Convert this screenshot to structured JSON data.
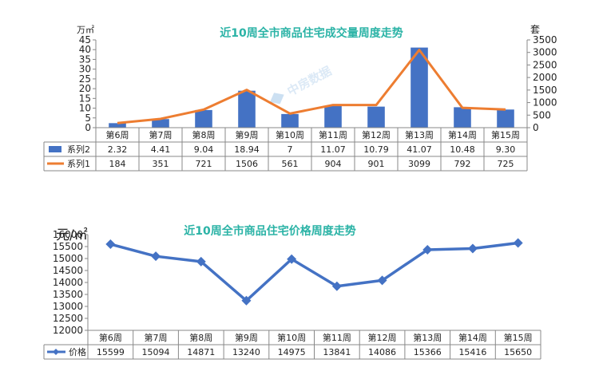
{
  "chart_data": [
    {
      "type": "bar+line",
      "title": "近10周全市商品住宅成交量周度走势",
      "left_unit": "万㎡",
      "right_unit": "套",
      "watermark": "中房数据",
      "categories": [
        "第6周",
        "第7周",
        "第8周",
        "第9周",
        "第10周",
        "第11周",
        "第12周",
        "第13周",
        "第14周",
        "第15周"
      ],
      "y_left": {
        "min": 0,
        "max": 45,
        "step": 5
      },
      "y_right": {
        "min": 0,
        "max": 3500,
        "step": 500
      },
      "series": [
        {
          "name": "系列2",
          "type": "bar",
          "axis": "left",
          "color": "#4472C4",
          "values": [
            2.32,
            4.41,
            9.04,
            18.94,
            7,
            11.07,
            10.79,
            41.07,
            10.48,
            9.3
          ],
          "labels": [
            "2.32",
            "4.41",
            "9.04",
            "18.94",
            "7",
            "11.07",
            "10.79",
            "41.07",
            "10.48",
            "9.30"
          ]
        },
        {
          "name": "系列1",
          "type": "line",
          "axis": "right",
          "color": "#ED7D31",
          "values": [
            184,
            351,
            721,
            1506,
            561,
            904,
            901,
            3099,
            792,
            725
          ],
          "labels": [
            "184",
            "351",
            "721",
            "1506",
            "561",
            "904",
            "901",
            "3099",
            "792",
            "725"
          ]
        }
      ],
      "grid": false,
      "data_table": true
    },
    {
      "type": "line",
      "title": "近10周全市商品住宅价格周度走势",
      "left_unit": "元/㎡",
      "categories": [
        "第6周",
        "第7周",
        "第8周",
        "第9周",
        "第10周",
        "第11周",
        "第12周",
        "第13周",
        "第14周",
        "第15周"
      ],
      "y_left": {
        "min": 12000,
        "max": 16000,
        "step": 500
      },
      "series": [
        {
          "name": "价格",
          "type": "line",
          "color": "#4472C4",
          "marker": "diamond",
          "values": [
            15599,
            15094,
            14871,
            13240,
            14975,
            13841,
            14086,
            15366,
            15416,
            15650
          ],
          "labels": [
            "15599",
            "15094",
            "14871",
            "13240",
            "14975",
            "13841",
            "14086",
            "15366",
            "15416",
            "15650"
          ]
        }
      ],
      "grid": false,
      "data_table": true
    }
  ]
}
